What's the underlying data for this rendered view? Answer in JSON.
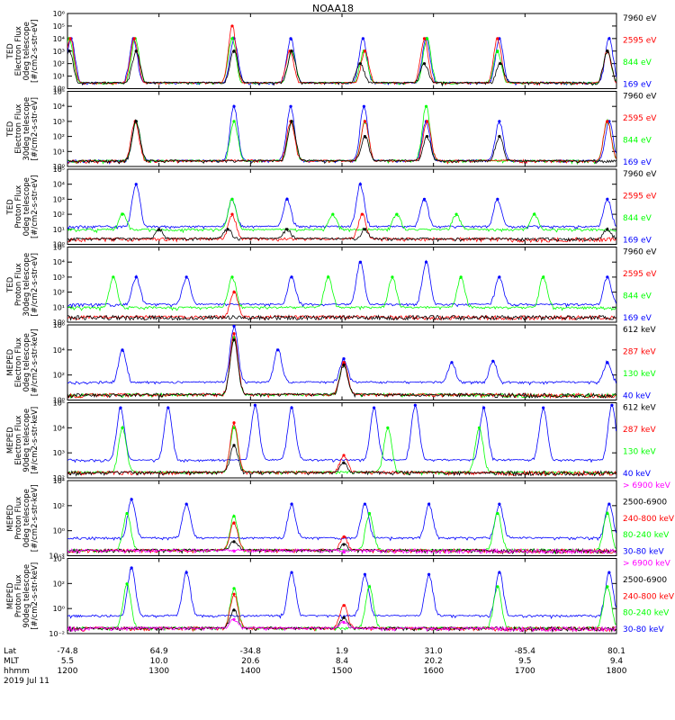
{
  "title": "NOAA18",
  "footer": {
    "row_labels": [
      "Lat",
      "MLT",
      "hhmm"
    ],
    "date": "2019 Jul 11",
    "columns": [
      {
        "lat": "-74.8",
        "mlt": "5.5",
        "hhmm": "1200"
      },
      {
        "lat": "64.9",
        "mlt": "10.0",
        "hhmm": "1300"
      },
      {
        "lat": "-34.8",
        "mlt": "20.6",
        "hhmm": "1400"
      },
      {
        "lat": "1.9",
        "mlt": "8.4",
        "hhmm": "1500"
      },
      {
        "lat": "31.0",
        "mlt": "20.2",
        "hhmm": "1600"
      },
      {
        "lat": "-85.4",
        "mlt": "9.5",
        "hhmm": "1700"
      },
      {
        "lat": "80.1",
        "mlt": "9.4",
        "hhmm": "1800"
      }
    ]
  },
  "colors": {
    "blue": "#0000ff",
    "red": "#ff0000",
    "green": "#00ff00",
    "black": "#000000",
    "magenta": "#ff00ff"
  },
  "chart_data": [
    {
      "type": "line",
      "ylabel": [
        "TED",
        "Electron Flux",
        "0deg telescope",
        "[#/cm2-s-str-eV]"
      ],
      "ylog": true,
      "ylim_exp": [
        0,
        6
      ],
      "ytick_labels": [
        "10⁰",
        "10¹",
        "10²",
        "10³",
        "10⁴",
        "10⁵",
        "10⁶"
      ],
      "series": [
        {
          "name": "7960 eV",
          "color": "black",
          "band": "low",
          "values": [
            [
              12.02,
              3
            ],
            [
              12.75,
              3
            ],
            [
              13.82,
              3
            ],
            [
              14.45,
              3
            ],
            [
              15.2,
              2
            ],
            [
              15.9,
              2
            ],
            [
              16.73,
              2
            ],
            [
              17.9,
              3
            ]
          ]
        },
        {
          "name": "2595 eV",
          "color": "red",
          "band": "low",
          "values": [
            [
              12.03,
              4
            ],
            [
              12.73,
              4
            ],
            [
              13.8,
              5
            ],
            [
              14.43,
              3
            ],
            [
              15.25,
              3
            ],
            [
              15.9,
              4
            ],
            [
              16.7,
              4
            ],
            [
              17.9,
              3
            ]
          ]
        },
        {
          "name": "844 eV",
          "color": "green",
          "band": "low",
          "values": [
            [
              12.02,
              4
            ],
            [
              12.74,
              4
            ],
            [
              13.8,
              4
            ],
            [
              14.45,
              3
            ],
            [
              15.24,
              3
            ],
            [
              15.93,
              4
            ],
            [
              16.7,
              3
            ],
            [
              17.9,
              3
            ]
          ]
        },
        {
          "name": "169 eV",
          "color": "blue",
          "band": "low",
          "values": [
            [
              12.04,
              4
            ],
            [
              12.72,
              4
            ],
            [
              13.82,
              4
            ],
            [
              14.44,
              4
            ],
            [
              15.23,
              4
            ],
            [
              15.92,
              4
            ],
            [
              16.72,
              4
            ],
            [
              17.92,
              4
            ]
          ]
        }
      ]
    },
    {
      "type": "line",
      "ylabel": [
        "TED",
        "Electron Flux",
        "30deg telescope",
        "[#/cm2-s-str-eV]"
      ],
      "ylog": true,
      "ylim_exp": [
        0,
        5
      ],
      "ytick_labels": [
        "10⁰",
        "10¹",
        "10²",
        "10³",
        "10⁴",
        "10⁵"
      ],
      "series": [
        {
          "name": "7960 eV",
          "color": "black",
          "band": "low",
          "values": [
            [
              12.75,
              3
            ],
            [
              14.45,
              3
            ],
            [
              15.25,
              2
            ],
            [
              15.93,
              2
            ],
            [
              16.72,
              2
            ]
          ]
        },
        {
          "name": "2595 eV",
          "color": "red",
          "band": "low",
          "values": [
            [
              12.74,
              3
            ],
            [
              14.44,
              3
            ],
            [
              15.25,
              3
            ],
            [
              15.93,
              3
            ],
            [
              17.9,
              3
            ]
          ]
        },
        {
          "name": "844 eV",
          "color": "green",
          "band": "low",
          "values": [
            [
              12.75,
              3
            ],
            [
              13.82,
              3
            ],
            [
              14.45,
              3
            ],
            [
              15.25,
              3
            ],
            [
              15.92,
              4
            ],
            [
              17.9,
              3
            ]
          ]
        },
        {
          "name": "169 eV",
          "color": "blue",
          "band": "low",
          "values": [
            [
              12.75,
              3
            ],
            [
              13.82,
              4
            ],
            [
              14.44,
              4
            ],
            [
              15.24,
              4
            ],
            [
              15.92,
              3
            ],
            [
              16.72,
              3
            ],
            [
              17.92,
              3
            ]
          ]
        }
      ]
    },
    {
      "type": "line",
      "ylabel": [
        "TED",
        "Proton Flux",
        "0deg telescope",
        "[#/cm2-s-str-eV]"
      ],
      "ylog": true,
      "ylim_exp": [
        0,
        5
      ],
      "ytick_labels": [
        "10⁰",
        "10¹",
        "10²",
        "10³",
        "10⁴",
        "10⁵"
      ],
      "series": [
        {
          "name": "7960 eV",
          "color": "black",
          "band": "low",
          "values": [
            [
              13.0,
              1
            ],
            [
              13.75,
              1
            ],
            [
              14.4,
              1
            ],
            [
              15.25,
              1
            ],
            [
              17.9,
              1
            ]
          ]
        },
        {
          "name": "2595 eV",
          "color": "red",
          "band": "low",
          "values": [
            [
              13.8,
              2
            ],
            [
              15.22,
              2
            ]
          ]
        },
        {
          "name": "844 eV",
          "color": "green",
          "band": "mid",
          "values": [
            [
              12.6,
              2
            ],
            [
              13.8,
              3
            ],
            [
              14.9,
              2
            ],
            [
              15.6,
              2
            ],
            [
              16.25,
              2
            ],
            [
              17.1,
              2
            ]
          ]
        },
        {
          "name": "169 eV",
          "color": "blue",
          "band": "high",
          "values": [
            [
              12.75,
              4
            ],
            [
              13.8,
              3
            ],
            [
              14.4,
              3
            ],
            [
              15.2,
              4
            ],
            [
              15.9,
              3
            ],
            [
              16.7,
              3
            ],
            [
              17.9,
              3
            ]
          ]
        }
      ]
    },
    {
      "type": "line",
      "ylabel": [
        "TED",
        "Proton Flux",
        "30deg telescope",
        "[#/cm2-s-str-eV]"
      ],
      "ylog": true,
      "ylim_exp": [
        0,
        5
      ],
      "ytick_labels": [
        "10⁰",
        "10¹",
        "10²",
        "10³",
        "10⁴",
        "10⁵"
      ],
      "series": [
        {
          "name": "7960 eV",
          "color": "black",
          "band": "low",
          "values": []
        },
        {
          "name": "2595 eV",
          "color": "red",
          "band": "low",
          "values": [
            [
              13.82,
              2
            ]
          ]
        },
        {
          "name": "844 eV",
          "color": "green",
          "band": "mid",
          "values": [
            [
              12.5,
              3
            ],
            [
              13.8,
              3
            ],
            [
              14.85,
              3
            ],
            [
              15.55,
              3
            ],
            [
              16.3,
              3
            ],
            [
              17.2,
              3
            ]
          ]
        },
        {
          "name": "169 eV",
          "color": "blue",
          "band": "high",
          "values": [
            [
              12.75,
              3
            ],
            [
              13.3,
              3
            ],
            [
              14.45,
              3
            ],
            [
              15.2,
              4
            ],
            [
              15.92,
              4
            ],
            [
              16.72,
              3
            ],
            [
              17.9,
              3
            ]
          ]
        }
      ]
    },
    {
      "type": "line",
      "ylabel": [
        "MEPED",
        "Electron Flux",
        "0deg telescope",
        "[#/cm2-s-str-keV]"
      ],
      "ylog": true,
      "ylim_exp": [
        0,
        6
      ],
      "ytick_labels": [
        "10⁰",
        "10²",
        "10⁴",
        "10⁶"
      ],
      "series": [
        {
          "name": "612 keV",
          "color": "black",
          "band": "low",
          "values": [
            [
              13.82,
              4.8
            ],
            [
              15.02,
              2.8
            ]
          ]
        },
        {
          "name": "287 keV",
          "color": "red",
          "band": "low",
          "values": [
            [
              13.82,
              5.3
            ],
            [
              15.02,
              3.0
            ]
          ]
        },
        {
          "name": "130 keV",
          "color": "green",
          "band": "low",
          "values": [
            [
              13.82,
              5.0
            ],
            [
              15.02,
              2.9
            ]
          ]
        },
        {
          "name": "40 keV",
          "color": "blue",
          "band": "high",
          "values": [
            [
              12.6,
              4
            ],
            [
              13.82,
              5.9
            ],
            [
              14.3,
              4
            ],
            [
              15.02,
              3.3
            ],
            [
              16.2,
              3
            ],
            [
              16.65,
              3.1
            ],
            [
              17.9,
              3
            ]
          ]
        }
      ]
    },
    {
      "type": "line",
      "ylabel": [
        "MEPED",
        "Electron Flux",
        "90deg telescope",
        "[#/cm2-s-str-keV]"
      ],
      "ylog": true,
      "ylim_exp": [
        2,
        5
      ],
      "ytick_labels": [
        "10²",
        "10³",
        "10⁴",
        "10⁵"
      ],
      "series": [
        {
          "name": "612 keV",
          "color": "black",
          "band": "low",
          "values": [
            [
              13.82,
              3.3
            ],
            [
              15.02,
              2.6
            ]
          ]
        },
        {
          "name": "287 keV",
          "color": "red",
          "band": "low",
          "values": [
            [
              13.82,
              4.2
            ],
            [
              15.02,
              2.9
            ]
          ]
        },
        {
          "name": "130 keV",
          "color": "green",
          "band": "low",
          "values": [
            [
              12.6,
              4
            ],
            [
              13.82,
              4.0
            ],
            [
              15.5,
              4
            ],
            [
              16.5,
              4
            ]
          ]
        },
        {
          "name": "40 keV",
          "color": "blue",
          "band": "high",
          "values": [
            [
              12.58,
              4.8
            ],
            [
              13.1,
              4.8
            ],
            [
              14.05,
              4.9
            ],
            [
              14.45,
              4.8
            ],
            [
              15.35,
              4.8
            ],
            [
              15.8,
              4.9
            ],
            [
              16.55,
              4.8
            ],
            [
              17.2,
              4.8
            ],
            [
              17.95,
              4.9
            ]
          ]
        }
      ]
    },
    {
      "type": "line",
      "ylabel": [
        "MEPED",
        "Proton Flux",
        "0deg telescope",
        "[#/cm2-s-str-keV]"
      ],
      "ylog": true,
      "ylim_exp": [
        -3,
        5
      ],
      "ytick_labels": [
        "10⁻²",
        "10⁰",
        "10²",
        "10⁴"
      ],
      "series": [
        {
          "name": "> 6900 keV",
          "color": "magenta",
          "band": "low",
          "values": [
            [
              13.82,
              -2.5
            ],
            [
              15.02,
              -2.6
            ]
          ]
        },
        {
          "name": "2500-6900",
          "color": "black",
          "band": "low",
          "values": [
            [
              13.82,
              -1.5
            ],
            [
              15.02,
              -1.8
            ]
          ]
        },
        {
          "name": "240-800 keV",
          "color": "red",
          "band": "low",
          "values": [
            [
              13.82,
              0.5
            ],
            [
              15.02,
              -1
            ]
          ]
        },
        {
          "name": "80-240 keV",
          "color": "green",
          "band": "low",
          "values": [
            [
              12.65,
              1.5
            ],
            [
              13.82,
              1.2
            ],
            [
              15.3,
              1.5
            ],
            [
              16.7,
              1.5
            ],
            [
              17.9,
              1.5
            ]
          ]
        },
        {
          "name": "30-80 keV",
          "color": "blue",
          "band": "high",
          "values": [
            [
              12.7,
              3
            ],
            [
              13.3,
              2.5
            ],
            [
              14.45,
              2.5
            ],
            [
              15.25,
              2.5
            ],
            [
              15.95,
              2.5
            ],
            [
              16.72,
              2.5
            ],
            [
              17.92,
              2.5
            ]
          ]
        }
      ]
    },
    {
      "type": "line",
      "ylabel": [
        "MEPED",
        "Proton Flux",
        "90deg telescope",
        "[#/cm2-s-str-keV]"
      ],
      "ylog": true,
      "ylim_exp": [
        -3,
        5
      ],
      "ytick_labels": [
        "10⁻²",
        "10⁰",
        "10²",
        "10⁴"
      ],
      "series": [
        {
          "name": "> 6900 keV",
          "color": "magenta",
          "band": "low",
          "values": [
            [
              13.82,
              -1.5
            ],
            [
              15.02,
              -1.8
            ]
          ]
        },
        {
          "name": "2500-6900",
          "color": "black",
          "band": "low",
          "values": [
            [
              13.82,
              -0.5
            ],
            [
              15.02,
              -1.3
            ]
          ]
        },
        {
          "name": "240-800 keV",
          "color": "red",
          "band": "low",
          "values": [
            [
              13.82,
              1.2
            ],
            [
              15.02,
              0
            ]
          ]
        },
        {
          "name": "80-240 keV",
          "color": "green",
          "band": "low",
          "values": [
            [
              12.65,
              2.3
            ],
            [
              13.82,
              1.8
            ],
            [
              15.3,
              2
            ],
            [
              16.7,
              2
            ],
            [
              17.9,
              2
            ]
          ]
        },
        {
          "name": "30-80 keV",
          "color": "blue",
          "band": "high",
          "values": [
            [
              12.7,
              4
            ],
            [
              13.3,
              3.5
            ],
            [
              14.45,
              3.5
            ],
            [
              15.25,
              3.3
            ],
            [
              15.95,
              3.3
            ],
            [
              16.72,
              3.5
            ],
            [
              17.92,
              3.5
            ]
          ]
        }
      ]
    }
  ]
}
